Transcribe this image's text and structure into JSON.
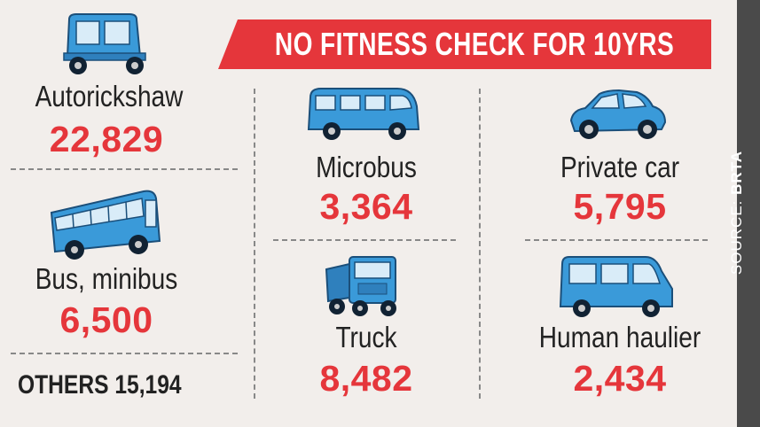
{
  "title": "NO FITNESS CHECK FOR 10YRS",
  "source": {
    "label": "SOURCE:",
    "name": "BRTA"
  },
  "others_text": "OTHERS 15,194",
  "colors": {
    "accent": "#e5363b",
    "icon_blue": "#3a9ad9",
    "background": "#f2eeeb",
    "source_bar": "#4a4a4a"
  },
  "chart_data": {
    "type": "table",
    "title": "NO FITNESS CHECK FOR 10YRS",
    "categories": [
      "Autorickshaw",
      "Bus, minibus",
      "Microbus",
      "Truck",
      "Private car",
      "Human haulier",
      "OTHERS"
    ],
    "values": [
      22829,
      6500,
      3364,
      8482,
      5795,
      2434,
      15194
    ],
    "items": [
      {
        "label": "Autorickshaw",
        "value_text": "22,829",
        "icon": "autorickshaw-icon"
      },
      {
        "label": "Bus, minibus",
        "value_text": "6,500",
        "icon": "bus-icon"
      },
      {
        "label": "Microbus",
        "value_text": "3,364",
        "icon": "microbus-icon"
      },
      {
        "label": "Truck",
        "value_text": "8,482",
        "icon": "truck-icon"
      },
      {
        "label": "Private car",
        "value_text": "5,795",
        "icon": "car-icon"
      },
      {
        "label": "Human haulier",
        "value_text": "2,434",
        "icon": "human-haulier-icon"
      }
    ]
  }
}
